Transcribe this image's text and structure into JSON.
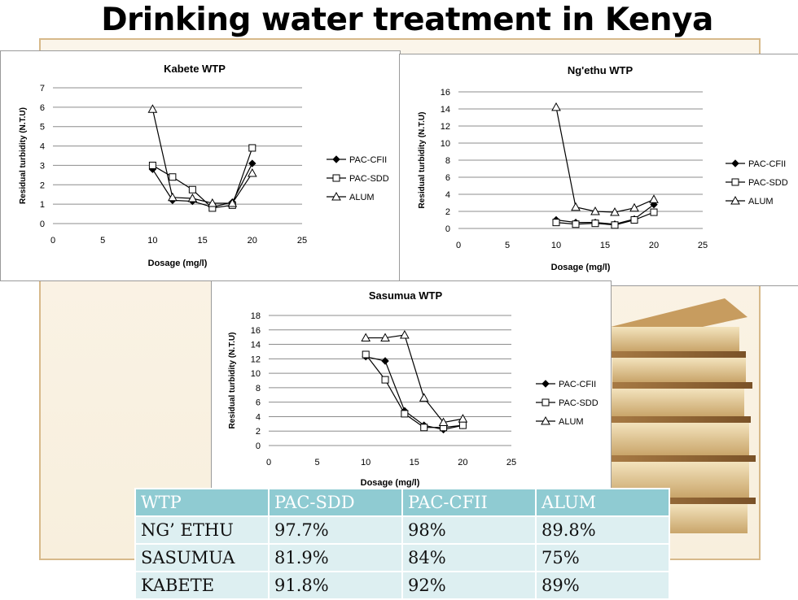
{
  "page_title": "Drinking water treatment in Kenya",
  "chart_data": [
    {
      "type": "line",
      "title": "Kabete WTP",
      "xlabel": "Dosage (mg/l)",
      "ylabel": "Residual turbidity (N.T.U)",
      "xlim": [
        0,
        25
      ],
      "ylim": [
        0,
        7
      ],
      "xticks": [
        "0",
        "5",
        "10",
        "15",
        "20",
        "25"
      ],
      "yticks": [
        "0",
        "1",
        "2",
        "3",
        "4",
        "5",
        "6",
        "7"
      ],
      "grid": true,
      "legend": "right",
      "series": [
        {
          "name": "PAC-CFII",
          "marker": "diamond",
          "x": [
            10,
            12,
            14,
            16,
            18,
            20
          ],
          "values": [
            2.8,
            1.2,
            1.15,
            0.85,
            1.1,
            3.1
          ]
        },
        {
          "name": "PAC-SDD",
          "marker": "square",
          "x": [
            10,
            12,
            14,
            16,
            18,
            20
          ],
          "values": [
            3.0,
            2.4,
            1.75,
            0.8,
            0.95,
            3.9
          ]
        },
        {
          "name": "ALUM",
          "marker": "triangle",
          "x": [
            10,
            12,
            14,
            16,
            18,
            20
          ],
          "values": [
            5.9,
            1.35,
            1.3,
            1.05,
            1.05,
            2.6
          ]
        }
      ]
    },
    {
      "type": "line",
      "title": "Ng'ethu WTP",
      "xlabel": "Dosage (mg/l)",
      "ylabel": "Residual turbidity (N.T.U)",
      "xlim": [
        0,
        25
      ],
      "ylim": [
        0,
        16
      ],
      "xticks": [
        "0",
        "5",
        "10",
        "15",
        "20",
        "25"
      ],
      "yticks": [
        "0",
        "2",
        "4",
        "6",
        "8",
        "10",
        "12",
        "14",
        "16"
      ],
      "grid": true,
      "legend": "right",
      "series": [
        {
          "name": "PAC-CFII",
          "marker": "diamond",
          "x": [
            10,
            12,
            14,
            16,
            18,
            20
          ],
          "values": [
            1.0,
            0.7,
            0.7,
            0.5,
            1.1,
            2.8
          ]
        },
        {
          "name": "PAC-SDD",
          "marker": "square",
          "x": [
            10,
            12,
            14,
            16,
            18,
            20
          ],
          "values": [
            0.7,
            0.5,
            0.6,
            0.4,
            1.0,
            1.9
          ]
        },
        {
          "name": "ALUM",
          "marker": "triangle",
          "x": [
            10,
            12,
            14,
            16,
            18,
            20
          ],
          "values": [
            14.2,
            2.5,
            2.0,
            1.9,
            2.4,
            3.4
          ]
        }
      ]
    },
    {
      "type": "line",
      "title": "Sasumua WTP",
      "xlabel": "Dosage (mg/l)",
      "ylabel": "Residual turbidity (N.T.U)",
      "xlim": [
        0,
        25
      ],
      "ylim": [
        0,
        18
      ],
      "xticks": [
        "0",
        "5",
        "10",
        "15",
        "20",
        "25"
      ],
      "yticks": [
        "0",
        "2",
        "4",
        "6",
        "8",
        "10",
        "12",
        "14",
        "16",
        "18"
      ],
      "grid": true,
      "legend": "right",
      "series": [
        {
          "name": "PAC-CFII",
          "marker": "diamond",
          "x": [
            10,
            12,
            14,
            16,
            18,
            20
          ],
          "values": [
            12.3,
            11.7,
            4.8,
            2.8,
            2.2,
            2.8
          ]
        },
        {
          "name": "PAC-SDD",
          "marker": "square",
          "x": [
            10,
            12,
            14,
            16,
            18,
            20
          ],
          "values": [
            12.6,
            9.1,
            4.4,
            2.5,
            2.5,
            2.8
          ]
        },
        {
          "name": "ALUM",
          "marker": "triangle",
          "x": [
            10,
            12,
            14,
            16,
            18,
            20
          ],
          "values": [
            14.9,
            14.9,
            15.3,
            6.6,
            3.2,
            3.7
          ]
        }
      ]
    }
  ],
  "table": {
    "header": [
      "WTP",
      "PAC-SDD",
      "PAC-CFII",
      "ALUM"
    ],
    "rows": [
      [
        "NG’ ETHU",
        "97.7%",
        "98%",
        "89.8%"
      ],
      [
        "SASUMUA",
        "81.9%",
        "84%",
        "75%"
      ],
      [
        "KABETE",
        "91.8%",
        "92%",
        "89%"
      ]
    ]
  }
}
